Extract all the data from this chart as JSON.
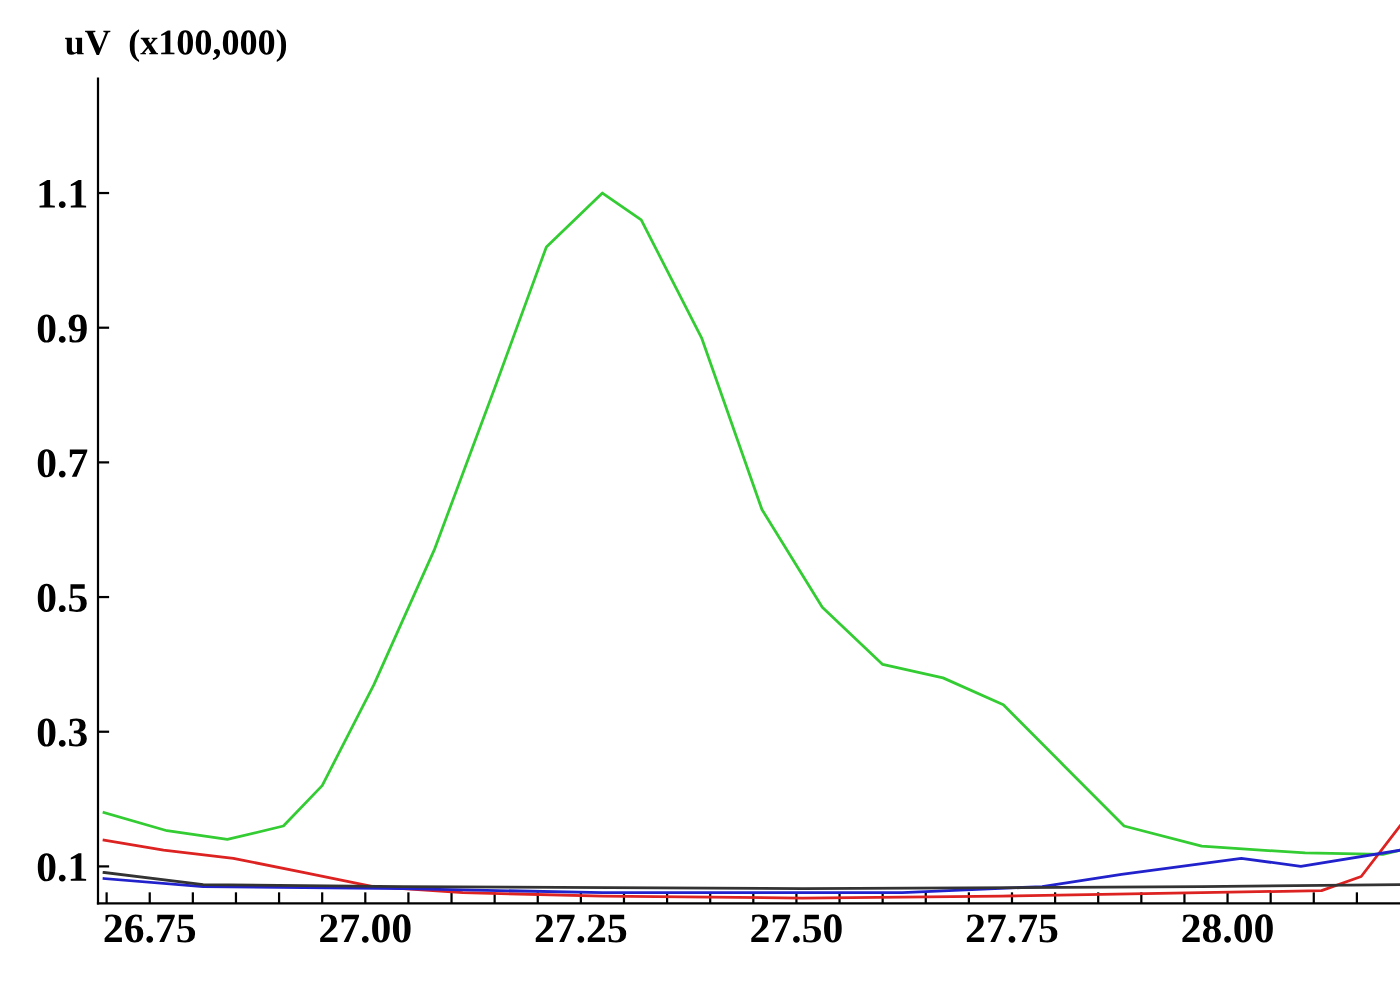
{
  "chart_data": {
    "type": "line",
    "ylabel": "uV  (x100,000)",
    "xlim": [
      26.69,
      28.2
    ],
    "ylim": [
      0.045,
      1.27
    ],
    "xticks": [
      {
        "value": 26.7,
        "label": null
      },
      26.75,
      {
        "value": 26.8,
        "label": null
      },
      {
        "value": 26.85,
        "label": null
      },
      {
        "value": 26.9,
        "label": null
      },
      {
        "value": 26.95,
        "label": null
      },
      {
        "value": 27.0,
        "label": "27.00"
      },
      {
        "value": 27.05,
        "label": null
      },
      {
        "value": 27.1,
        "label": null
      },
      {
        "value": 27.15,
        "label": null
      },
      {
        "value": 27.2,
        "label": null
      },
      27.25,
      {
        "value": 27.3,
        "label": null
      },
      {
        "value": 27.35,
        "label": null
      },
      {
        "value": 27.4,
        "label": null
      },
      {
        "value": 27.45,
        "label": null
      },
      {
        "value": 27.5,
        "label": "27.50"
      },
      {
        "value": 27.55,
        "label": null
      },
      {
        "value": 27.6,
        "label": null
      },
      {
        "value": 27.65,
        "label": null
      },
      {
        "value": 27.7,
        "label": null
      },
      27.75,
      {
        "value": 27.8,
        "label": null
      },
      {
        "value": 27.85,
        "label": null
      },
      {
        "value": 27.9,
        "label": null
      },
      {
        "value": 27.95,
        "label": null
      },
      {
        "value": 28.0,
        "label": "28.00"
      },
      {
        "value": 28.05,
        "label": null
      },
      {
        "value": 28.1,
        "label": null
      },
      {
        "value": 28.15,
        "label": null
      }
    ],
    "yticks": [
      0.1,
      0.3,
      0.5,
      0.7,
      0.9,
      1.1
    ],
    "grid": false,
    "line_style": "solid",
    "series": [
      {
        "color": "#33cc33",
        "x": [
          26.697,
          26.77,
          26.84,
          26.905,
          26.95,
          27.01,
          27.08,
          27.15,
          27.21,
          27.275,
          27.32,
          27.39,
          27.46,
          27.53,
          27.6,
          27.67,
          27.74,
          27.81,
          27.88,
          27.97,
          28.09,
          28.18,
          28.2
        ],
        "values": [
          0.18,
          0.153,
          0.14,
          0.16,
          0.22,
          0.37,
          0.57,
          0.81,
          1.02,
          1.1,
          1.06,
          0.885,
          0.63,
          0.485,
          0.4,
          0.38,
          0.34,
          0.25,
          0.16,
          0.13,
          0.12,
          0.118,
          0.124
        ]
      },
      {
        "color": "#dd2222",
        "x": [
          26.697,
          26.766,
          26.847,
          26.928,
          27.009,
          27.113,
          27.275,
          27.507,
          27.738,
          27.97,
          28.109,
          28.155,
          28.2
        ],
        "values": [
          0.139,
          0.124,
          0.112,
          0.091,
          0.07,
          0.061,
          0.056,
          0.053,
          0.056,
          0.061,
          0.064,
          0.085,
          0.16
        ]
      },
      {
        "color": "#2222cc",
        "x": [
          26.697,
          26.812,
          27.044,
          27.275,
          27.623,
          27.785,
          27.877,
          28.016,
          28.085,
          28.2
        ],
        "values": [
          0.082,
          0.07,
          0.067,
          0.061,
          0.061,
          0.07,
          0.088,
          0.112,
          0.1,
          0.124
        ]
      },
      {
        "color": "#333333",
        "x": [
          26.697,
          26.812,
          27.044,
          27.507,
          27.97,
          28.2
        ],
        "values": [
          0.091,
          0.073,
          0.07,
          0.067,
          0.07,
          0.073
        ]
      }
    ]
  }
}
